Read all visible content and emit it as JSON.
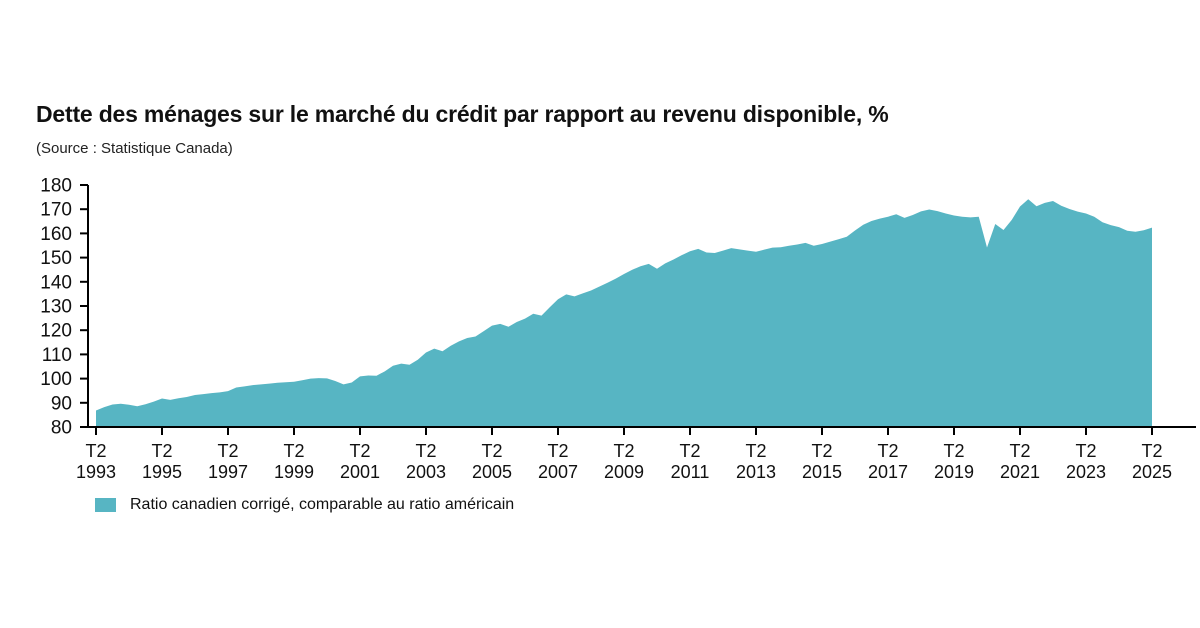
{
  "header": {
    "title": "Dette des ménages sur le marché du crédit par rapport au revenu disponible, %",
    "source": "(Source : Statistique Canada)"
  },
  "legend": {
    "label": "Ratio canadien corrigé, comparable au ratio américain",
    "swatch_color": "#57b5c3"
  },
  "chart_data": {
    "type": "area",
    "title": "Dette des ménages sur le marché du crédit par rapport au revenu disponible, %",
    "source": "(Source : Statistique Canada)",
    "frequency": "quarterly",
    "x_start": "T2 1993",
    "x_end": "T2 2025",
    "ylim": [
      80,
      180
    ],
    "yticks": [
      80,
      90,
      100,
      110,
      120,
      130,
      140,
      150,
      160,
      170,
      180
    ],
    "xticks": {
      "prefix": "T2",
      "years": [
        1993,
        1995,
        1997,
        1999,
        2001,
        2003,
        2005,
        2007,
        2009,
        2011,
        2013,
        2015,
        2017,
        2019,
        2021,
        2023,
        2025
      ]
    },
    "grid": false,
    "legend_position": "bottom-left",
    "axis_color": "#000000",
    "series": [
      {
        "name": "Ratio canadien corrigé, comparable au ratio américain",
        "color": "#57b5c3",
        "values": [
          86.8,
          88.2,
          89.3,
          89.6,
          89.2,
          88.6,
          89.4,
          90.5,
          91.8,
          91.2,
          91.9,
          92.4,
          93.2,
          93.6,
          94.0,
          94.3,
          94.8,
          96.3,
          96.8,
          97.3,
          97.6,
          97.9,
          98.3,
          98.5,
          98.7,
          99.3,
          100.0,
          100.2,
          100.1,
          99.0,
          97.6,
          98.4,
          100.9,
          101.3,
          101.2,
          103.0,
          105.3,
          106.2,
          105.7,
          107.8,
          110.8,
          112.4,
          111.3,
          113.6,
          115.4,
          116.8,
          117.4,
          119.6,
          121.9,
          122.6,
          121.4,
          123.4,
          124.8,
          126.8,
          126.0,
          129.5,
          132.8,
          134.8,
          134.0,
          135.2,
          136.4,
          138.0,
          139.6,
          141.3,
          143.2,
          145.0,
          146.4,
          147.4,
          145.4,
          147.6,
          149.2,
          151.0,
          152.6,
          153.6,
          152.1,
          151.9,
          152.9,
          153.9,
          153.4,
          152.9,
          152.4,
          153.3,
          154.1,
          154.3,
          154.9,
          155.4,
          156.1,
          154.9,
          155.6,
          156.6,
          157.6,
          158.6,
          161.2,
          163.6,
          165.1,
          166.1,
          166.9,
          167.9,
          166.4,
          167.6,
          169.1,
          169.9,
          169.2,
          168.2,
          167.4,
          166.9,
          166.6,
          166.9,
          154.2,
          163.9,
          161.4,
          165.6,
          171.1,
          174.1,
          171.2,
          172.6,
          173.4,
          171.4,
          170.1,
          169.0,
          168.2,
          166.9,
          164.6,
          163.4,
          162.6,
          161.1,
          160.7,
          161.3,
          162.4
        ]
      }
    ]
  }
}
